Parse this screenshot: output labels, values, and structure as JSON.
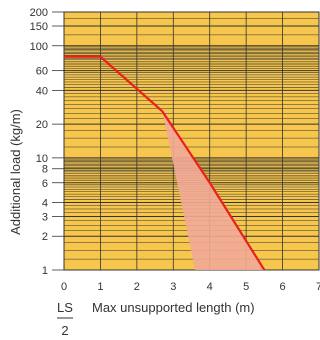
{
  "chart_data": {
    "type": "line",
    "title": "",
    "ylabel": "Additional load  (kg/m)",
    "xlabel_prefix": "LS",
    "xlabel_divisor": "2",
    "xlabel": "Max unsupported length (m)",
    "xlim": [
      0,
      7
    ],
    "ylim": [
      1,
      200
    ],
    "yscale": "log",
    "grid": true,
    "x_ticks": [
      "0",
      "1",
      "2",
      "3",
      "4",
      "5",
      "6",
      "7"
    ],
    "x_tick_values": [
      0,
      1,
      2,
      3,
      4,
      5,
      6,
      7
    ],
    "y_ticks": [
      "1",
      "2",
      "3",
      "4",
      "6",
      "8",
      "10",
      "20",
      "40",
      "60",
      "100",
      "150",
      "200"
    ],
    "y_tick_values": [
      1,
      2,
      3,
      4,
      6,
      8,
      10,
      20,
      40,
      60,
      100,
      150,
      200
    ],
    "series": [
      {
        "color": "#e8221b",
        "x": [
          0,
          1,
          2.7,
          4,
          5.5
        ],
        "y": [
          80,
          80,
          26,
          6,
          1
        ]
      }
    ],
    "shaded_region": {
      "color": "#f2a898",
      "polygon": [
        [
          2.7,
          26
        ],
        [
          4,
          6
        ],
        [
          5.5,
          1
        ],
        [
          3.6,
          1
        ]
      ]
    },
    "colors": {
      "plot_background": "#f6c64d",
      "grid": "#333333",
      "line": "#e8221b",
      "shade": "#f2a898"
    }
  }
}
